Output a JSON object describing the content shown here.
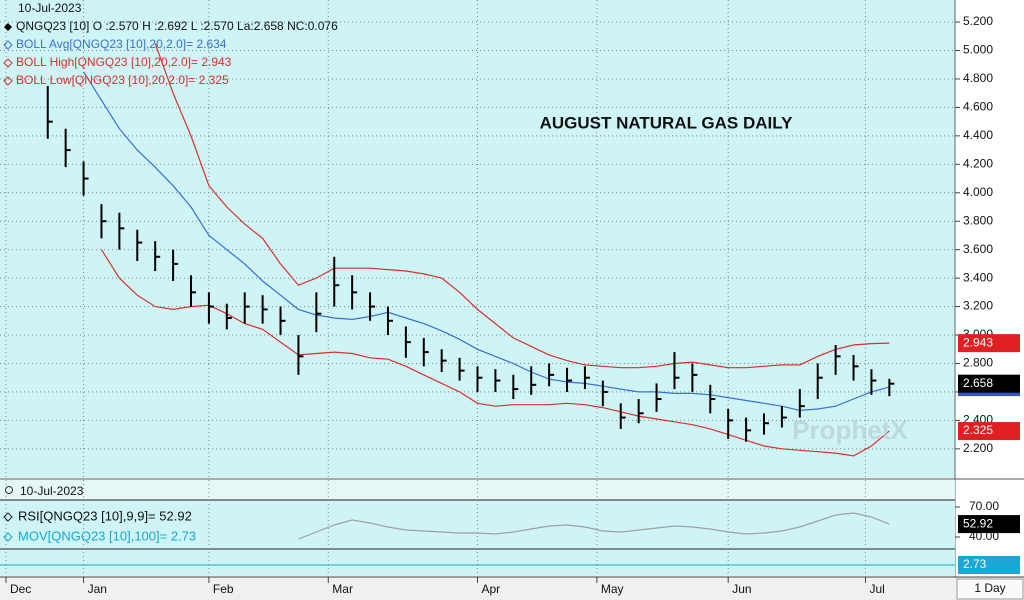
{
  "chart_data": [
    {
      "type": "ohlc",
      "title": "AUGUST NATURAL GAS DAILY",
      "date": "10-Jul-2023",
      "watermark": "ProphetX",
      "x": [
        8,
        11,
        14,
        17,
        20,
        23,
        26,
        29,
        32,
        35,
        38,
        41,
        44,
        47,
        50,
        53,
        56,
        59,
        62,
        65,
        68,
        71,
        74,
        77,
        80,
        83,
        86,
        89,
        92,
        95,
        98,
        101,
        104,
        107,
        110,
        113,
        116,
        119,
        122,
        125,
        128,
        131,
        134,
        137,
        140,
        143,
        146,
        149
      ],
      "xlim": [
        0,
        160
      ],
      "xticks": [
        {
          "value": 1,
          "label": "Dec"
        },
        {
          "value": 14,
          "label": "Jan"
        },
        {
          "value": 35,
          "label": "Feb"
        },
        {
          "value": 55,
          "label": "Mar"
        },
        {
          "value": 80,
          "label": "Apr"
        },
        {
          "value": 100,
          "label": "May"
        },
        {
          "value": 122,
          "label": "Jun"
        },
        {
          "value": 145,
          "label": "Jul"
        }
      ],
      "ylim": [
        1.995,
        5.355
      ],
      "yticks": [
        {
          "value": 5.2,
          "label": "5.200"
        },
        {
          "value": 5.0,
          "label": "5.000"
        },
        {
          "value": 4.8,
          "label": "4.800"
        },
        {
          "value": 4.6,
          "label": "4.600"
        },
        {
          "value": 4.4,
          "label": "4.400"
        },
        {
          "value": 4.2,
          "label": "4.200"
        },
        {
          "value": 4.0,
          "label": "4.000"
        },
        {
          "value": 3.8,
          "label": "3.800"
        },
        {
          "value": 3.6,
          "label": "3.600"
        },
        {
          "value": 3.4,
          "label": "3.400"
        },
        {
          "value": 3.2,
          "label": "3.200"
        },
        {
          "value": 3.0,
          "label": "3.000"
        },
        {
          "value": 2.8,
          "label": "2.800"
        },
        {
          "value": 2.6,
          "label": "2.600"
        },
        {
          "value": 2.4,
          "label": "2.400"
        },
        {
          "value": 2.2,
          "label": "2.200"
        }
      ],
      "grid": true,
      "ohlc": {
        "name": "QNGQ23 [10] O :2.570 H :2.692 L :2.570 La:2.658 NC:0.076",
        "color": "#000000",
        "high": [
          4.75,
          4.45,
          4.22,
          3.92,
          3.86,
          3.74,
          3.66,
          3.6,
          3.42,
          3.3,
          3.22,
          3.3,
          3.28,
          3.2,
          3.0,
          3.3,
          3.55,
          3.42,
          3.3,
          3.2,
          3.06,
          2.98,
          2.9,
          2.84,
          2.78,
          2.76,
          2.72,
          2.78,
          2.8,
          2.77,
          2.78,
          2.68,
          2.52,
          2.55,
          2.66,
          2.88,
          2.8,
          2.65,
          2.48,
          2.42,
          2.45,
          2.5,
          2.62,
          2.8,
          2.93,
          2.86,
          2.76,
          2.692
        ],
        "low": [
          4.38,
          4.18,
          3.98,
          3.68,
          3.6,
          3.52,
          3.45,
          3.38,
          3.2,
          3.08,
          3.04,
          3.08,
          3.08,
          3.0,
          2.72,
          3.02,
          3.2,
          3.18,
          3.1,
          3.0,
          2.84,
          2.78,
          2.74,
          2.68,
          2.6,
          2.6,
          2.55,
          2.58,
          2.64,
          2.6,
          2.62,
          2.5,
          2.34,
          2.38,
          2.46,
          2.62,
          2.6,
          2.45,
          2.27,
          2.25,
          2.3,
          2.35,
          2.42,
          2.55,
          2.72,
          2.68,
          2.58,
          2.57
        ],
        "close": [
          4.5,
          4.3,
          4.1,
          3.8,
          3.75,
          3.65,
          3.55,
          3.5,
          3.3,
          3.2,
          3.12,
          3.2,
          3.18,
          3.1,
          2.85,
          3.15,
          3.35,
          3.3,
          3.2,
          3.1,
          2.95,
          2.88,
          2.82,
          2.75,
          2.7,
          2.68,
          2.62,
          2.65,
          2.72,
          2.68,
          2.7,
          2.6,
          2.42,
          2.45,
          2.55,
          2.7,
          2.72,
          2.55,
          2.4,
          2.33,
          2.38,
          2.42,
          2.5,
          2.7,
          2.85,
          2.78,
          2.68,
          2.658
        ]
      },
      "series": [
        {
          "name": "BOLL Avg[QNGQ23 [10],20,2.0]= 2.634",
          "color": "#3a6fd8",
          "values": [
            null,
            null,
            4.85,
            4.65,
            4.45,
            4.3,
            4.18,
            4.05,
            3.9,
            3.7,
            3.6,
            3.5,
            3.38,
            3.28,
            3.18,
            3.14,
            3.12,
            3.11,
            3.13,
            3.16,
            3.12,
            3.08,
            3.03,
            2.97,
            2.9,
            2.85,
            2.8,
            2.74,
            2.69,
            2.67,
            2.66,
            2.64,
            2.62,
            2.6,
            2.6,
            2.59,
            2.59,
            2.58,
            2.56,
            2.54,
            2.52,
            2.5,
            2.47,
            2.48,
            2.5,
            2.55,
            2.6,
            2.634
          ]
        },
        {
          "name": "BOLL High[QNGQ23 [10],20,2.0]= 2.943",
          "color": "#d9302c",
          "values": [
            null,
            null,
            null,
            null,
            null,
            null,
            5.05,
            4.7,
            4.4,
            4.05,
            3.9,
            3.78,
            3.68,
            3.5,
            3.35,
            3.4,
            3.47,
            3.47,
            3.47,
            3.46,
            3.45,
            3.43,
            3.4,
            3.3,
            3.18,
            3.08,
            2.98,
            2.92,
            2.86,
            2.82,
            2.79,
            2.78,
            2.77,
            2.77,
            2.78,
            2.8,
            2.81,
            2.79,
            2.77,
            2.77,
            2.78,
            2.79,
            2.79,
            2.85,
            2.9,
            2.93,
            2.94,
            2.943
          ]
        },
        {
          "name": "BOLL Low[QNGQ23 [10],20,2.0]= 2.325",
          "color": "#d9302c",
          "values": [
            null,
            null,
            null,
            3.6,
            3.4,
            3.28,
            3.2,
            3.18,
            3.2,
            3.21,
            3.15,
            3.08,
            3.04,
            2.95,
            2.86,
            2.87,
            2.88,
            2.87,
            2.84,
            2.83,
            2.78,
            2.72,
            2.66,
            2.6,
            2.52,
            2.5,
            2.51,
            2.51,
            2.51,
            2.52,
            2.51,
            2.49,
            2.46,
            2.43,
            2.41,
            2.39,
            2.37,
            2.34,
            2.3,
            2.26,
            2.22,
            2.2,
            2.19,
            2.18,
            2.17,
            2.15,
            2.22,
            2.325
          ]
        }
      ]
    },
    {
      "type": "line",
      "date": "10-Jul-2023",
      "ylim": [
        28,
        77
      ],
      "yticks": [
        {
          "value": 70,
          "label": "70.00"
        },
        {
          "value": 40,
          "label": "40.00"
        }
      ],
      "series": [
        {
          "name": "RSI[QNGQ23 [10],9,9]= 52.92",
          "color": "#a0a0a0",
          "values": [
            null,
            null,
            null,
            null,
            null,
            null,
            null,
            null,
            null,
            null,
            null,
            null,
            null,
            null,
            38,
            45,
            52,
            57,
            54,
            50,
            47,
            46,
            45,
            44,
            44,
            43,
            45,
            48,
            51,
            52,
            50,
            46,
            45,
            47,
            49,
            51,
            50,
            48,
            45,
            43,
            44,
            46,
            50,
            56,
            62,
            64,
            60,
            52.92
          ]
        },
        {
          "name": "MOV[QNGQ23 [10],100]= 2.73",
          "color": "#1aa7d8",
          "last": 2.73
        }
      ],
      "interval": "1 Day"
    }
  ]
}
